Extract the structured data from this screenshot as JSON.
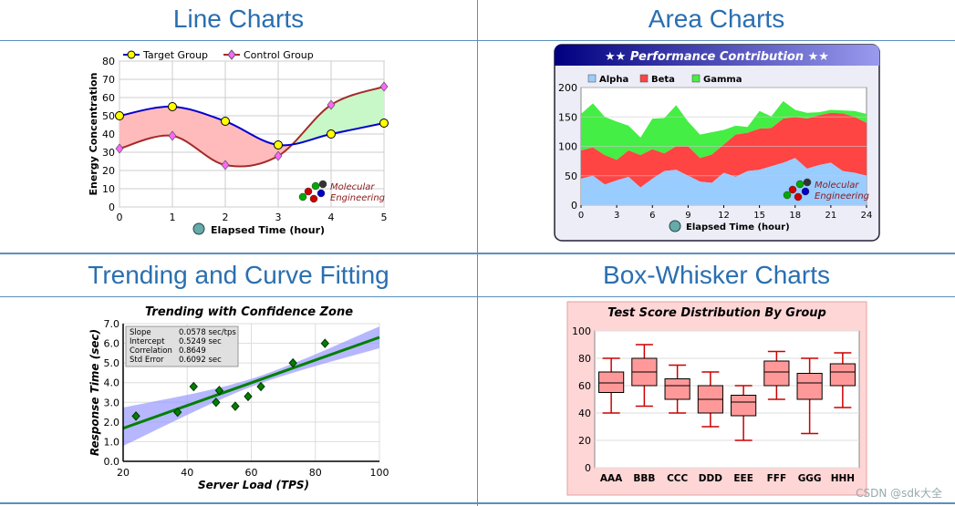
{
  "section_titles": {
    "line": "Line Charts",
    "area": "Area Charts",
    "trend": "Trending and Curve Fitting",
    "box": "Box-Whisker Charts"
  },
  "watermark": "CSDN @sdk大全",
  "logo_text": [
    "Molecular",
    "Engineering"
  ],
  "chart_data": [
    {
      "type": "line",
      "title": "",
      "xlabel": "Elapsed Time (hour)",
      "ylabel": "Energy Concentration",
      "x": [
        0,
        1,
        2,
        3,
        4,
        5
      ],
      "xlim": [
        0,
        5
      ],
      "ylim": [
        0,
        80
      ],
      "xticks": [
        "0",
        "1",
        "2",
        "3",
        "4",
        "5"
      ],
      "yticks": [
        "0",
        "10",
        "20",
        "30",
        "40",
        "50",
        "60",
        "70",
        "80"
      ],
      "legend": "top-left",
      "grid": true,
      "series": [
        {
          "name": "Target Group",
          "values": [
            50,
            55,
            47,
            34,
            40,
            46
          ],
          "color": "#0000cc",
          "marker": "circle",
          "marker_color": "#ffff00"
        },
        {
          "name": "Control Group",
          "values": [
            32,
            39,
            23,
            28,
            56,
            66
          ],
          "color": "#a52a2a",
          "marker": "diamond",
          "marker_color": "#ff66ff"
        }
      ]
    },
    {
      "type": "area",
      "title": "★★ Performance Contribution ★★",
      "xlabel": "Elapsed Time (hour)",
      "ylabel": "",
      "x": [
        0,
        1,
        2,
        3,
        4,
        5,
        6,
        7,
        8,
        9,
        10,
        11,
        12,
        13,
        14,
        15,
        16,
        17,
        18,
        19,
        20,
        21,
        22,
        23,
        24
      ],
      "xlim": [
        0,
        24
      ],
      "ylim": [
        0,
        200
      ],
      "xticks": [
        "0",
        "3",
        "6",
        "9",
        "12",
        "15",
        "18",
        "21",
        "24"
      ],
      "yticks": [
        "0",
        "50",
        "100",
        "150",
        "200"
      ],
      "legend": "top-left",
      "stacked": true,
      "series": [
        {
          "name": "Alpha",
          "color": "#99ccff",
          "values": [
            45,
            50,
            35,
            42,
            48,
            30,
            45,
            58,
            60,
            50,
            40,
            38,
            55,
            48,
            58,
            60,
            66,
            72,
            80,
            62,
            68,
            72,
            58,
            55,
            50
          ]
        },
        {
          "name": "Beta",
          "color": "#ff4444",
          "values": [
            48,
            48,
            50,
            35,
            45,
            55,
            50,
            30,
            40,
            50,
            40,
            48,
            48,
            72,
            65,
            70,
            65,
            75,
            70,
            85,
            85,
            85,
            98,
            95,
            90
          ]
        },
        {
          "name": "Gamma",
          "color": "#44ee44",
          "values": [
            62,
            75,
            65,
            65,
            42,
            30,
            52,
            60,
            70,
            42,
            40,
            38,
            25,
            15,
            10,
            30,
            20,
            30,
            12,
            10,
            5,
            5,
            5,
            10,
            15
          ]
        }
      ]
    },
    {
      "type": "scatter",
      "title": "Trending with Confidence Zone",
      "xlabel": "Server Load (TPS)",
      "ylabel": "Response Time (sec)",
      "xlim": [
        20,
        100
      ],
      "ylim": [
        0,
        7
      ],
      "xticks": [
        "20",
        "40",
        "60",
        "80",
        "100"
      ],
      "yticks": [
        "0.0",
        "1.0",
        "2.0",
        "3.0",
        "4.0",
        "5.0",
        "6.0",
        "7.0"
      ],
      "points": [
        {
          "x": 24,
          "y": 2.3
        },
        {
          "x": 37,
          "y": 2.5
        },
        {
          "x": 42,
          "y": 3.8
        },
        {
          "x": 49,
          "y": 3.0
        },
        {
          "x": 50,
          "y": 3.6
        },
        {
          "x": 55,
          "y": 2.8
        },
        {
          "x": 59,
          "y": 3.3
        },
        {
          "x": 63,
          "y": 3.8
        },
        {
          "x": 73,
          "y": 5.0
        },
        {
          "x": 83,
          "y": 6.0
        }
      ],
      "trend": {
        "slope": 0.0578,
        "intercept": 0.5249,
        "confidence_half_width": [
          0.55,
          0.2,
          0.55
        ]
      },
      "stats": [
        {
          "label": "Slope",
          "value": "0.0578 sec/tps"
        },
        {
          "label": "Intercept",
          "value": "0.5249 sec"
        },
        {
          "label": "Correlation",
          "value": "0.8649"
        },
        {
          "label": "Std Error",
          "value": "0.6092 sec"
        }
      ]
    },
    {
      "type": "box",
      "title": "Test Score Distribution By Group",
      "xlabel": "",
      "ylabel": "",
      "ylim": [
        0,
        100
      ],
      "yticks": [
        "0",
        "20",
        "40",
        "60",
        "80",
        "100"
      ],
      "categories": [
        "AAA",
        "BBB",
        "CCC",
        "DDD",
        "EEE",
        "FFF",
        "GGG",
        "HHH"
      ],
      "boxes": [
        {
          "min": 40,
          "q1": 55,
          "median": 62,
          "q3": 70,
          "max": 80
        },
        {
          "min": 45,
          "q1": 60,
          "median": 70,
          "q3": 80,
          "max": 90
        },
        {
          "min": 40,
          "q1": 50,
          "median": 60,
          "q3": 65,
          "max": 75
        },
        {
          "min": 30,
          "q1": 40,
          "median": 50,
          "q3": 60,
          "max": 70
        },
        {
          "min": 20,
          "q1": 38,
          "median": 48,
          "q3": 53,
          "max": 60
        },
        {
          "min": 50,
          "q1": 60,
          "median": 70,
          "q3": 78,
          "max": 85
        },
        {
          "min": 25,
          "q1": 50,
          "median": 62,
          "q3": 69,
          "max": 80
        },
        {
          "min": 44,
          "q1": 60,
          "median": 70,
          "q3": 76,
          "max": 84
        }
      ]
    }
  ]
}
